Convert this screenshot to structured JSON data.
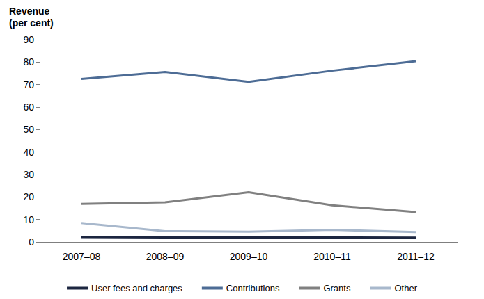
{
  "chart_data": {
    "type": "line",
    "y_label": "Revenue\n(per cent)",
    "categories": [
      "2007–08",
      "2008–09",
      "2009–10",
      "2010–11",
      "2011–12"
    ],
    "series": [
      {
        "name": "User fees and charges",
        "color": "#1c2640",
        "values": [
          2.2,
          2.0,
          2.1,
          2.0,
          1.9
        ]
      },
      {
        "name": "Contributions",
        "color": "#4d6c95",
        "values": [
          72.5,
          75.6,
          71.2,
          76.2,
          80.4
        ]
      },
      {
        "name": "Grants",
        "color": "#808080",
        "values": [
          16.9,
          17.6,
          22.1,
          16.3,
          13.3
        ]
      },
      {
        "name": "Other",
        "color": "#a8b8cc",
        "values": [
          8.4,
          4.8,
          4.6,
          5.4,
          4.4
        ]
      }
    ],
    "ylim": [
      0,
      90
    ],
    "yticks": [
      0,
      10,
      20,
      30,
      40,
      50,
      60,
      70,
      80,
      90
    ],
    "grid": false,
    "legend": "bottom",
    "marker": "none"
  }
}
